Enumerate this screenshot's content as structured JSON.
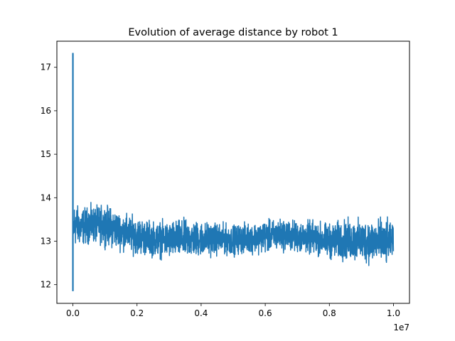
{
  "chart_data": {
    "type": "line",
    "title": "Evolution of average distance by robot 1",
    "xlabel": "",
    "ylabel": "",
    "x_offset_text": "1e7",
    "xlim": [
      -0.05,
      1.05
    ],
    "ylim": [
      11.57,
      17.6
    ],
    "x_ticks": [
      0.0,
      0.2,
      0.4,
      0.6,
      0.8,
      1.0
    ],
    "x_tick_labels": [
      "0.0",
      "0.2",
      "0.4",
      "0.6",
      "0.8",
      "1.0"
    ],
    "y_ticks": [
      12,
      13,
      14,
      15,
      16,
      17
    ],
    "y_tick_labels": [
      "12",
      "13",
      "14",
      "15",
      "16",
      "17"
    ],
    "grid": false,
    "series": [
      {
        "color": "#1f77b4",
        "initial_spike": {
          "x": 0.0,
          "max": 17.33,
          "min": 11.85
        },
        "envelope": {
          "x": [
            0.0,
            0.005,
            0.02,
            0.05,
            0.08,
            0.1,
            0.15,
            0.2,
            0.25,
            0.3,
            0.35,
            0.4,
            0.45,
            0.5,
            0.55,
            0.6,
            0.65,
            0.7,
            0.75,
            0.8,
            0.85,
            0.9,
            0.95,
            0.98,
            1.0
          ],
          "upper": [
            13.8,
            14.05,
            13.85,
            13.9,
            13.9,
            13.95,
            13.75,
            13.65,
            13.55,
            13.55,
            13.6,
            13.55,
            13.5,
            13.45,
            13.5,
            13.55,
            13.6,
            13.55,
            13.55,
            13.5,
            13.6,
            13.6,
            13.65,
            13.6,
            13.4
          ],
          "lower": [
            12.65,
            12.75,
            12.8,
            12.85,
            12.85,
            12.8,
            12.7,
            12.6,
            12.55,
            12.5,
            12.5,
            12.55,
            12.6,
            12.6,
            12.65,
            12.65,
            12.7,
            12.65,
            12.6,
            12.5,
            12.45,
            12.4,
            12.35,
            12.3,
            12.7
          ]
        }
      }
    ]
  }
}
